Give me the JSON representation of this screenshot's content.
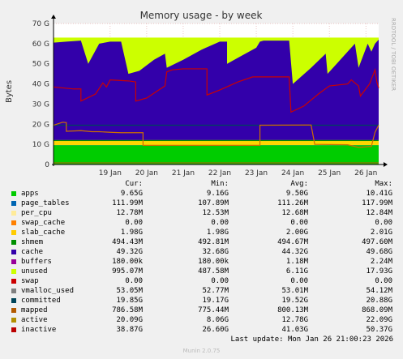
{
  "chart_data": {
    "type": "area",
    "title": "Memory usage - by week",
    "ylabel": "Bytes",
    "side_label": "RRDTOOL / TOBI OETIKER",
    "ylim": [
      0,
      70
    ],
    "y_unit": "G",
    "y_ticks": [
      "0",
      "10 G",
      "20 G",
      "30 G",
      "40 G",
      "50 G",
      "60 G",
      "70 G"
    ],
    "x_ticks": [
      "19 Jan",
      "20 Jan",
      "21 Jan",
      "22 Jan",
      "23 Jan",
      "24 Jan",
      "25 Jan",
      "26 Jan"
    ],
    "x_days": [
      0,
      1,
      2,
      3,
      4,
      5,
      6,
      7
    ],
    "xlim": [
      -1.55,
      7.35
    ],
    "grid": true,
    "stack": {
      "apps": {
        "color": "#00cc00",
        "level": 9.5
      },
      "page_tables": {
        "color": "#0066b3",
        "level": 0.11
      },
      "per_cpu": {
        "color": "#ffcc00",
        "level": 0.013
      },
      "slab_cache": {
        "color": "#ffd600",
        "level": 2.0
      },
      "shmem": {
        "color": "#008f00",
        "level": 0.49
      },
      "cache_top": {
        "color": "#3300aa",
        "points": [
          [
            -1.55,
            60.5
          ],
          [
            -1.2,
            61
          ],
          [
            -0.8,
            61.5
          ],
          [
            -0.6,
            50
          ],
          [
            -0.3,
            60
          ],
          [
            0,
            61
          ],
          [
            0.3,
            61
          ],
          [
            0.5,
            45
          ],
          [
            0.8,
            46.5
          ],
          [
            1.2,
            52
          ],
          [
            1.5,
            55
          ],
          [
            1.55,
            48
          ],
          [
            2,
            52
          ],
          [
            2.5,
            57
          ],
          [
            3,
            61
          ],
          [
            3.2,
            61
          ],
          [
            3.2,
            50
          ],
          [
            3.6,
            54
          ],
          [
            4,
            58
          ],
          [
            4.1,
            61
          ],
          [
            4.2,
            61.5
          ],
          [
            4.5,
            61.5
          ],
          [
            4.9,
            61.5
          ],
          [
            5.0,
            40
          ],
          [
            5.5,
            48
          ],
          [
            5.9,
            55
          ],
          [
            5.95,
            45
          ],
          [
            6.2,
            50
          ],
          [
            6.5,
            56
          ],
          [
            6.7,
            60
          ],
          [
            6.8,
            48
          ],
          [
            7.05,
            60
          ],
          [
            7.15,
            56
          ],
          [
            7.25,
            60
          ],
          [
            7.35,
            62
          ]
        ]
      },
      "unused_top": {
        "color": "#ccff00",
        "level": 63
      }
    },
    "lines": {
      "inactive": {
        "color": "#cc0000",
        "points": [
          [
            -1.55,
            38.5
          ],
          [
            -1,
            37.5
          ],
          [
            -0.8,
            37.5
          ],
          [
            -0.8,
            31.5
          ],
          [
            -0.4,
            35
          ],
          [
            -0.2,
            40.5
          ],
          [
            -0.1,
            38.5
          ],
          [
            0,
            42
          ],
          [
            0.5,
            41.5
          ],
          [
            0.7,
            41
          ],
          [
            0.7,
            31.5
          ],
          [
            1,
            33
          ],
          [
            1.5,
            39
          ],
          [
            1.55,
            46
          ],
          [
            1.7,
            47
          ],
          [
            2,
            47.5
          ],
          [
            2.65,
            47.5
          ],
          [
            2.65,
            34.5
          ],
          [
            3,
            37
          ],
          [
            3.5,
            41
          ],
          [
            3.9,
            43.5
          ],
          [
            4.9,
            43.5
          ],
          [
            4.95,
            26
          ],
          [
            5.3,
            29
          ],
          [
            5.7,
            35
          ],
          [
            6,
            39
          ],
          [
            6.5,
            40
          ],
          [
            6.6,
            42
          ],
          [
            6.8,
            39
          ],
          [
            6.85,
            34
          ],
          [
            7.1,
            40
          ],
          [
            7.25,
            47
          ],
          [
            7.3,
            41
          ],
          [
            7.35,
            38
          ]
        ]
      },
      "active": {
        "color": "#cc6f00",
        "points": [
          [
            -1.55,
            19.5
          ],
          [
            -1.3,
            21
          ],
          [
            -1.2,
            20.8
          ],
          [
            -1.2,
            16.5
          ],
          [
            -0.8,
            16.8
          ],
          [
            -0.5,
            16.3
          ],
          [
            -0.3,
            16.3
          ],
          [
            0,
            16
          ],
          [
            0.3,
            15.8
          ],
          [
            0.9,
            15.8
          ],
          [
            0.9,
            9.5
          ],
          [
            4.1,
            9.5
          ],
          [
            4.1,
            19.5
          ],
          [
            5.5,
            19.6
          ],
          [
            5.6,
            10
          ],
          [
            6.5,
            9.8
          ],
          [
            6.8,
            8.5
          ],
          [
            7.15,
            9
          ],
          [
            7.25,
            16
          ],
          [
            7.35,
            19.5
          ]
        ]
      },
      "mapped": {
        "color": "#b35a00",
        "level": 0.8
      },
      "committed": {
        "color": "#00455a",
        "level": 19.5
      },
      "vmalloc_used": {
        "color": "#808080",
        "level": 0.053
      }
    }
  },
  "legend": {
    "headers": {
      "cur": "Cur:",
      "min": "Min:",
      "avg": "Avg:",
      "max": "Max:"
    },
    "rows": [
      {
        "name": "apps",
        "color": "#00cc00",
        "cur": "9.65G",
        "min": "9.16G",
        "avg": "9.50G",
        "max": "10.41G"
      },
      {
        "name": "page_tables",
        "color": "#0066b3",
        "cur": "111.99M",
        "min": "107.89M",
        "avg": "111.26M",
        "max": "117.99M"
      },
      {
        "name": "per_cpu",
        "color": "#ffeb99",
        "cur": "12.78M",
        "min": "12.53M",
        "avg": "12.68M",
        "max": "12.84M"
      },
      {
        "name": "swap_cache",
        "color": "#ff8000",
        "cur": "0.00",
        "min": "0.00",
        "avg": "0.00",
        "max": "0.00"
      },
      {
        "name": "slab_cache",
        "color": "#ffcc00",
        "cur": "1.98G",
        "min": "1.98G",
        "avg": "2.00G",
        "max": "2.01G"
      },
      {
        "name": "shmem",
        "color": "#008f00",
        "cur": "494.43M",
        "min": "492.81M",
        "avg": "494.67M",
        "max": "497.60M"
      },
      {
        "name": "cache",
        "color": "#3300aa",
        "cur": "49.32G",
        "min": "32.68G",
        "avg": "44.32G",
        "max": "49.68G"
      },
      {
        "name": "buffers",
        "color": "#990099",
        "cur": "180.00k",
        "min": "180.00k",
        "avg": "1.18M",
        "max": "2.24M"
      },
      {
        "name": "unused",
        "color": "#ccff00",
        "cur": "995.07M",
        "min": "487.58M",
        "avg": "6.11G",
        "max": "17.93G"
      },
      {
        "name": "swap",
        "color": "#cc0000",
        "cur": "0.00",
        "min": "0.00",
        "avg": "0.00",
        "max": "0.00"
      },
      {
        "name": "vmalloc_used",
        "color": "#808080",
        "cur": "53.05M",
        "min": "52.77M",
        "avg": "53.01M",
        "max": "54.12M"
      },
      {
        "name": "committed",
        "color": "#00455a",
        "cur": "19.85G",
        "min": "19.17G",
        "avg": "19.52G",
        "max": "20.88G"
      },
      {
        "name": "mapped",
        "color": "#b35a00",
        "cur": "786.58M",
        "min": "775.44M",
        "avg": "800.13M",
        "max": "868.09M"
      },
      {
        "name": "active",
        "color": "#b38f00",
        "cur": "20.09G",
        "min": "8.06G",
        "avg": "12.78G",
        "max": "22.09G"
      },
      {
        "name": "inactive",
        "color": "#bb0000",
        "cur": "38.87G",
        "min": "26.60G",
        "avg": "41.03G",
        "max": "50.37G"
      }
    ]
  },
  "footer": {
    "last_update": "Last update:  Mon Jan 26 21:00:23 2026",
    "version": "Munin 2.0.75"
  }
}
